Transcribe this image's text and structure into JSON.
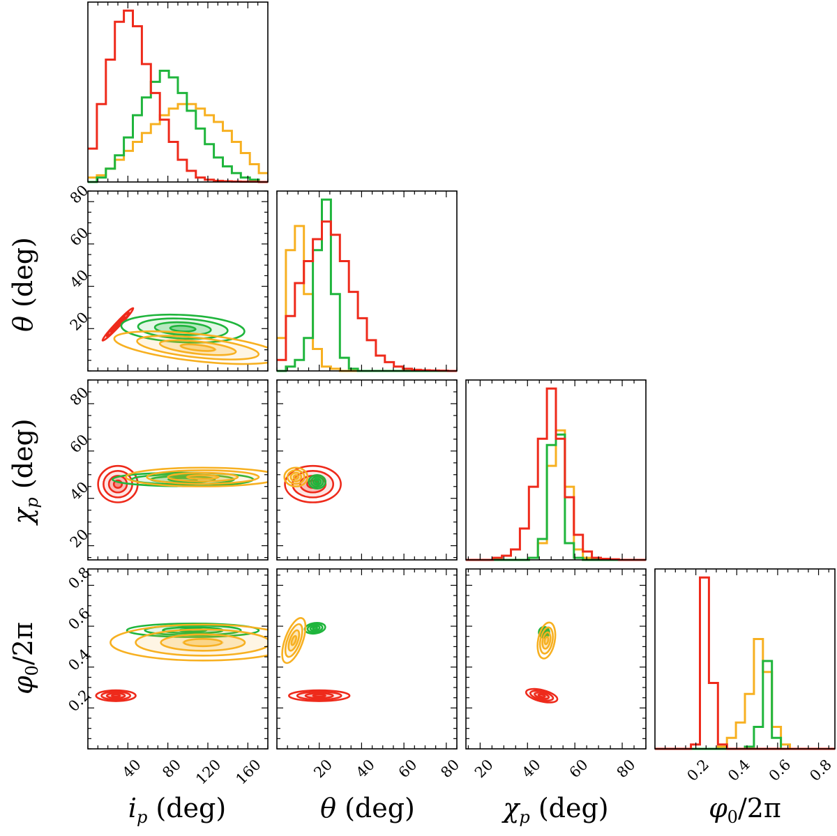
{
  "colors": {
    "red": "#ee2a1b",
    "green": "#1fb53c",
    "orange": "#f7b021",
    "frame": "#000000"
  },
  "chart_data": {
    "type": "corner",
    "series": [
      {
        "name": "red",
        "color": "#ee2a1b"
      },
      {
        "name": "green",
        "color": "#1fb53c"
      },
      {
        "name": "orange",
        "color": "#f7b021"
      }
    ],
    "parameters": [
      {
        "key": "ip",
        "label": "i_p (deg)",
        "range": [
          0,
          180
        ],
        "ticks": [
          40,
          80,
          120,
          160
        ]
      },
      {
        "key": "theta",
        "label": "θ (deg)",
        "range": [
          0,
          85
        ],
        "ticks": [
          20,
          40,
          60,
          80
        ]
      },
      {
        "key": "chip",
        "label": "χ_p (deg)",
        "range": [
          14,
          90
        ],
        "ticks": [
          20,
          40,
          60,
          80
        ]
      },
      {
        "key": "phi0",
        "label": "φ0/2π",
        "range": [
          0,
          0.88
        ],
        "ticks": [
          0.2,
          0.4,
          0.6,
          0.8
        ]
      }
    ],
    "axis_titles": {
      "ip_prefix": "i",
      "ip_sub": "p",
      "ip_unit": " (deg)",
      "theta": "θ",
      "theta_unit": " (deg)",
      "chip_prefix": "χ",
      "chip_sub": "p",
      "chip_unit": " (deg)",
      "phi_prefix": "φ",
      "phi_sub": "0",
      "phi_unit": "/2π"
    },
    "histograms": {
      "ip": {
        "edges_start": 0,
        "bin_width": 9,
        "red": [
          0.15,
          0.35,
          0.55,
          0.72,
          0.77,
          0.7,
          0.53,
          0.4,
          0.28,
          0.18,
          0.1,
          0.05,
          0.02,
          0.01,
          0.005,
          0.003,
          0.002,
          0.001,
          0.001,
          0.0
        ],
        "green": [
          0.0,
          0.02,
          0.06,
          0.12,
          0.2,
          0.3,
          0.38,
          0.45,
          0.5,
          0.47,
          0.4,
          0.32,
          0.24,
          0.17,
          0.11,
          0.07,
          0.04,
          0.02,
          0.01,
          0.0
        ],
        "orange": [
          0.02,
          0.03,
          0.06,
          0.1,
          0.14,
          0.18,
          0.22,
          0.26,
          0.3,
          0.33,
          0.35,
          0.35,
          0.33,
          0.3,
          0.27,
          0.23,
          0.18,
          0.13,
          0.08,
          0.04
        ]
      },
      "theta": {
        "edges_start": 0,
        "bin_width": 4.25,
        "red": [
          0.05,
          0.25,
          0.4,
          0.5,
          0.6,
          0.68,
          0.62,
          0.5,
          0.36,
          0.24,
          0.14,
          0.07,
          0.04,
          0.02,
          0.01,
          0.005,
          0.003,
          0.002,
          0.001,
          0.0
        ],
        "green": [
          0.0,
          0.02,
          0.05,
          0.15,
          0.55,
          0.78,
          0.35,
          0.06,
          0.01,
          0.0,
          0.0,
          0.0,
          0.0,
          0.0,
          0.0,
          0.0,
          0.0,
          0.0,
          0.0,
          0.0
        ],
        "orange": [
          0.15,
          0.55,
          0.66,
          0.35,
          0.1,
          0.02,
          0.01,
          0.0,
          0.0,
          0.0,
          0.0,
          0.0,
          0.0,
          0.0,
          0.0,
          0.0,
          0.0,
          0.0,
          0.0,
          0.0
        ]
      },
      "chip": {
        "edges_start": 14,
        "bin_width": 3.8,
        "red": [
          0.0,
          0.0,
          0.0,
          0.01,
          0.02,
          0.05,
          0.15,
          0.35,
          0.58,
          0.82,
          0.58,
          0.3,
          0.12,
          0.04,
          0.01,
          0.005,
          0.003,
          0.0,
          0.0,
          0.0
        ],
        "green": [
          0.0,
          0.0,
          0.0,
          0.0,
          0.0,
          0.0,
          0.0,
          0.01,
          0.1,
          0.55,
          0.6,
          0.08,
          0.01,
          0.0,
          0.0,
          0.0,
          0.0,
          0.0,
          0.0,
          0.0
        ],
        "orange": [
          0.0,
          0.0,
          0.0,
          0.0,
          0.0,
          0.0,
          0.0,
          0.01,
          0.08,
          0.45,
          0.62,
          0.35,
          0.05,
          0.01,
          0.0,
          0.0,
          0.0,
          0.0,
          0.0,
          0.0
        ]
      },
      "phi0": {
        "edges_start": 0,
        "bin_width": 0.044,
        "red": [
          0.0,
          0.0,
          0.0,
          0.0,
          0.02,
          0.78,
          0.3,
          0.02,
          0.0,
          0.0,
          0.0,
          0.0,
          0.0,
          0.0,
          0.0,
          0.0,
          0.0,
          0.0,
          0.0,
          0.0
        ],
        "green": [
          0.0,
          0.0,
          0.0,
          0.0,
          0.0,
          0.0,
          0.0,
          0.0,
          0.0,
          0.0,
          0.01,
          0.1,
          0.4,
          0.05,
          0.0,
          0.0,
          0.0,
          0.0,
          0.0,
          0.0
        ],
        "orange": [
          0.0,
          0.0,
          0.0,
          0.0,
          0.0,
          0.0,
          0.0,
          0.01,
          0.05,
          0.12,
          0.25,
          0.5,
          0.35,
          0.1,
          0.02,
          0.0,
          0.0,
          0.0,
          0.0,
          0.0
        ]
      }
    },
    "contours": [
      {
        "x": "ip",
        "y": "theta",
        "groups": [
          {
            "series": "red",
            "cx": 30,
            "cy": 22,
            "sx": 7,
            "sy": 3.5,
            "rho": 0.98
          },
          {
            "series": "green",
            "cx": 95,
            "cy": 20,
            "sx": 28,
            "sy": 3,
            "rho": -0.2,
            "cap": true
          },
          {
            "series": "orange",
            "cx": 110,
            "cy": 11,
            "sx": 38,
            "sy": 3.5,
            "rho": -0.55
          }
        ]
      },
      {
        "x": "ip",
        "y": "chip",
        "groups": [
          {
            "series": "red",
            "cx": 30,
            "cy": 46,
            "sx": 9,
            "sy": 3.5,
            "rho": 0.0
          },
          {
            "series": "green",
            "cx": 95,
            "cy": 48,
            "sx": 32,
            "sy": 1.3,
            "rho": 0.0
          },
          {
            "series": "orange",
            "cx": 115,
            "cy": 49,
            "sx": 35,
            "sy": 1.8,
            "rho": 0.0
          }
        ]
      },
      {
        "x": "theta",
        "y": "chip",
        "groups": [
          {
            "series": "red",
            "cx": 17,
            "cy": 46,
            "sx": 6,
            "sy": 3.5,
            "rho": 0.0
          },
          {
            "series": "green",
            "cx": 19,
            "cy": 47,
            "sx": 1.8,
            "sy": 1.3,
            "rho": 0.0
          },
          {
            "series": "orange",
            "cx": 9,
            "cy": 49,
            "sx": 2.5,
            "sy": 1.8,
            "rho": 0.0
          }
        ]
      },
      {
        "x": "ip",
        "y": "phi0",
        "groups": [
          {
            "series": "red",
            "cx": 28,
            "cy": 0.26,
            "sx": 9,
            "sy": 0.012,
            "rho": 0.0
          },
          {
            "series": "green",
            "cx": 105,
            "cy": 0.58,
            "sx": 30,
            "sy": 0.015,
            "rho": 0.0
          },
          {
            "series": "orange",
            "cx": 115,
            "cy": 0.52,
            "sx": 42,
            "sy": 0.04,
            "rho": 0.0
          }
        ]
      },
      {
        "x": "theta",
        "y": "phi0",
        "groups": [
          {
            "series": "red",
            "cx": 20,
            "cy": 0.26,
            "sx": 6.5,
            "sy": 0.012,
            "rho": 0.0
          },
          {
            "series": "green",
            "cx": 18,
            "cy": 0.59,
            "sx": 2.2,
            "sy": 0.012,
            "rho": 0.2
          },
          {
            "series": "orange",
            "cx": 8,
            "cy": 0.53,
            "sx": 2.5,
            "sy": 0.05,
            "rho": 0.6
          }
        ]
      },
      {
        "x": "chip",
        "y": "phi0",
        "groups": [
          {
            "series": "red",
            "cx": 46,
            "cy": 0.26,
            "sx": 3.0,
            "sy": 0.015,
            "rho": -0.5
          },
          {
            "series": "green",
            "cx": 47,
            "cy": 0.57,
            "sx": 1.0,
            "sy": 0.012,
            "rho": 0.0
          },
          {
            "series": "orange",
            "cx": 48,
            "cy": 0.53,
            "sx": 1.7,
            "sy": 0.04,
            "rho": 0.3
          }
        ]
      }
    ]
  }
}
